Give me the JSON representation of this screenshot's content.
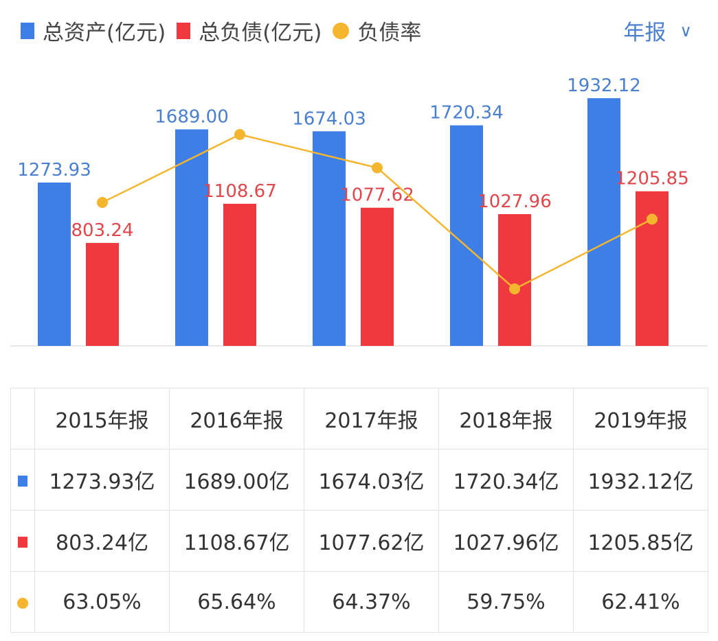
{
  "legend": [
    {
      "label": "总资产(亿元)",
      "type": "square",
      "color": "#3d7fe6"
    },
    {
      "label": "总负债(亿元)",
      "type": "square",
      "color": "#f0393f"
    },
    {
      "label": "负债率",
      "type": "dot",
      "color": "#f5b52f"
    }
  ],
  "period_selector": {
    "label": "年报",
    "icon": "chevron-down-icon"
  },
  "chart_data": {
    "type": "bar",
    "categories": [
      "2015年报",
      "2016年报",
      "2017年报",
      "2018年报",
      "2019年报"
    ],
    "series": [
      {
        "name": "总资产(亿元)",
        "type": "bar",
        "color": "#3d7fe6",
        "label_color": "#4a7fcf",
        "values": [
          1273.93,
          1689.0,
          1674.03,
          1720.34,
          1932.12
        ],
        "labels": [
          "1273.93",
          "1689.00",
          "1674.03",
          "1720.34",
          "1932.12"
        ]
      },
      {
        "name": "总负债(亿元)",
        "type": "bar",
        "color": "#f0393f",
        "label_color": "#e0474c",
        "values": [
          803.24,
          1108.67,
          1077.62,
          1027.96,
          1205.85
        ],
        "labels": [
          "803.24",
          "1108.67",
          "1077.62",
          "1027.96",
          "1205.85"
        ]
      },
      {
        "name": "负债率",
        "type": "line",
        "color": "#f5b52f",
        "values": [
          63.05,
          65.64,
          64.37,
          59.75,
          62.41
        ]
      }
    ],
    "grid": false
  },
  "table": {
    "headers": [
      "2015年报",
      "2016年报",
      "2017年报",
      "2018年报",
      "2019年报"
    ],
    "rows": [
      {
        "marker": "square",
        "color": "#3d7fe6",
        "cells": [
          "1273.93亿",
          "1689.00亿",
          "1674.03亿",
          "1720.34亿",
          "1932.12亿"
        ]
      },
      {
        "marker": "square",
        "color": "#f0393f",
        "cells": [
          "803.24亿",
          "1108.67亿",
          "1077.62亿",
          "1027.96亿",
          "1205.85亿"
        ]
      },
      {
        "marker": "dot",
        "color": "#f5b52f",
        "cells": [
          "63.05%",
          "65.64%",
          "64.37%",
          "59.75%",
          "62.41%"
        ]
      }
    ]
  }
}
